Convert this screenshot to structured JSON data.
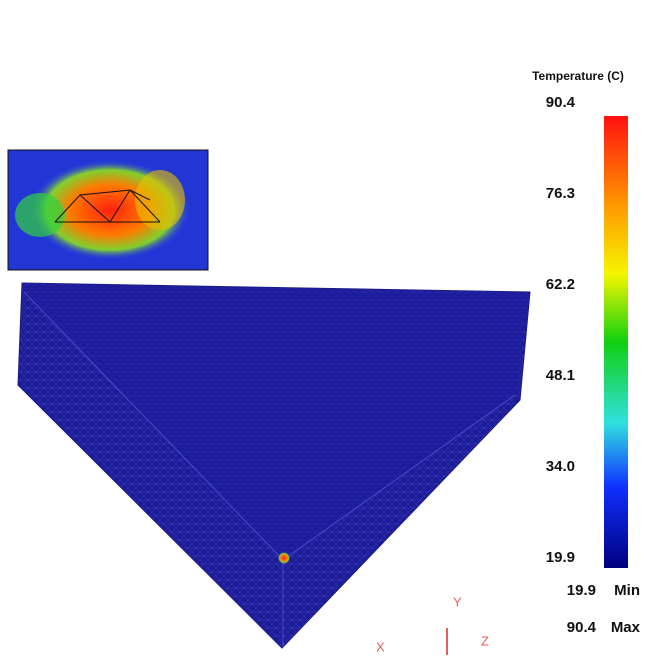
{
  "legend": {
    "title": "Temperature (C)",
    "ticks": [
      "90.4",
      "76.3",
      "62.2",
      "48.1",
      "34.0",
      "19.9"
    ],
    "min": {
      "value": "19.9",
      "label": "Min"
    },
    "max": {
      "value": "90.4",
      "label": "Max"
    }
  },
  "axes": {
    "x": "X",
    "y": "Y",
    "z": "Z"
  }
}
